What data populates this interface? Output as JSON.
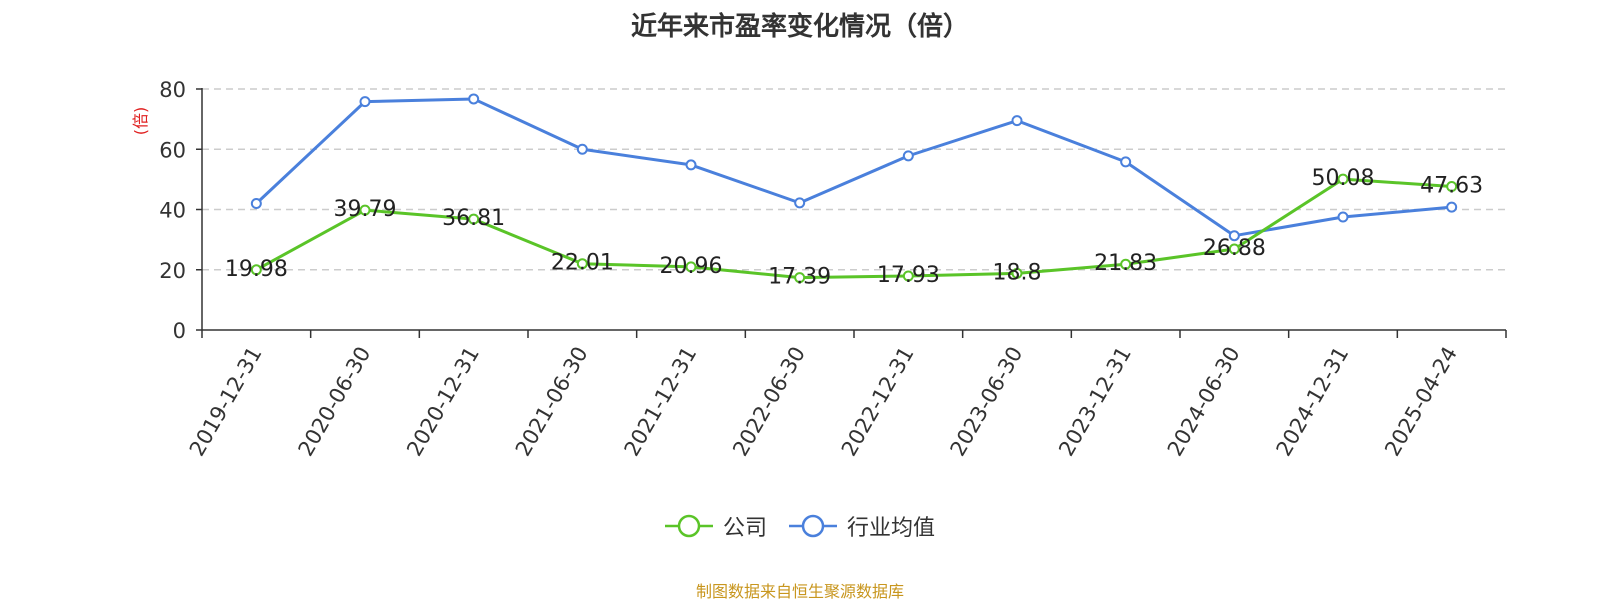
{
  "colors": {
    "company": "#5ac428",
    "industry": "#4a80dc",
    "ylabel": "#e02020",
    "footer": "#c8961e"
  },
  "footer_text": "制图数据来自恒生聚源数据库",
  "chart_data": {
    "type": "line",
    "title": "近年来市盈率变化情况（倍）",
    "ylabel": "(倍)",
    "xlabel": "",
    "categories": [
      "2019-12-31",
      "2020-06-30",
      "2020-12-31",
      "2021-06-30",
      "2021-12-31",
      "2022-06-30",
      "2022-12-31",
      "2023-06-30",
      "2023-12-31",
      "2024-06-30",
      "2024-12-31",
      "2025-04-24"
    ],
    "ylim": [
      0,
      80
    ],
    "yticks": [
      0,
      20,
      40,
      60,
      80
    ],
    "grid": true,
    "legend_position": "bottom-center",
    "series": [
      {
        "name": "公司",
        "color_key": "company",
        "values": [
          19.98,
          39.79,
          36.81,
          22.01,
          20.96,
          17.39,
          17.93,
          18.8,
          21.83,
          26.88,
          50.08,
          47.63
        ],
        "labels": [
          "19.98",
          "39.79",
          "36.81",
          "22.01",
          "20.96",
          "17.39",
          "17.93",
          "18.8",
          "21.83",
          "26.88",
          "50.08",
          "47.63"
        ]
      },
      {
        "name": "行业均值",
        "color_key": "industry",
        "values": [
          42.0,
          75.8,
          76.7,
          60.0,
          54.8,
          42.2,
          57.8,
          69.5,
          55.8,
          31.3,
          37.5,
          40.8
        ]
      }
    ]
  }
}
